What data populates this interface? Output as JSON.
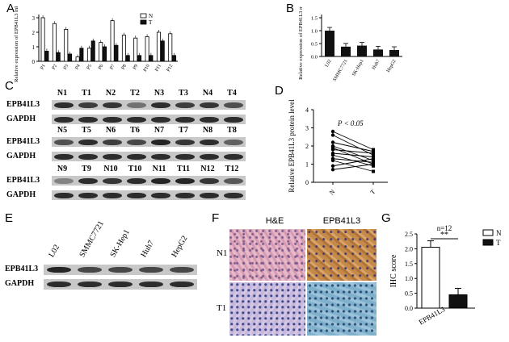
{
  "panels": {
    "A": "A",
    "B": "B",
    "C": "C",
    "D": "D",
    "E": "E",
    "F": "F",
    "G": "G"
  },
  "chartA": {
    "type": "bar",
    "ylabel": "Relative expression of EPB41L3 mRNA",
    "yticks": [
      "0",
      "1",
      "2",
      "3"
    ],
    "ylim": [
      0,
      3
    ],
    "legend": [
      "N",
      "T"
    ],
    "categories": [
      "P1",
      "P2",
      "P3",
      "P4",
      "P5",
      "P6",
      "P7",
      "P8",
      "P9",
      "P10",
      "P11",
      "P12"
    ],
    "series": [
      {
        "name": "N",
        "values": [
          3.0,
          2.6,
          2.2,
          0.3,
          0.9,
          1.3,
          2.8,
          1.8,
          1.6,
          1.7,
          2.0,
          1.9
        ]
      },
      {
        "name": "T",
        "values": [
          0.7,
          0.6,
          0.5,
          0.9,
          1.4,
          1.0,
          1.1,
          0.4,
          0.4,
          0.4,
          1.4,
          0.4
        ]
      }
    ]
  },
  "chartB": {
    "type": "bar",
    "ylabel": "Relative expression of EPB41L3 mRNA",
    "yticks": [
      "0.0",
      "0.5",
      "1.0",
      "1.5"
    ],
    "ylim": [
      0,
      1.5
    ],
    "categories": [
      "L02",
      "SMMC7721",
      "SK-Hep1",
      "Huh7",
      "HepG2"
    ],
    "values": [
      1.0,
      0.38,
      0.42,
      0.27,
      0.25
    ]
  },
  "blotC": {
    "rows": [
      {
        "lanes": [
          "N1",
          "T1",
          "N2",
          "T2",
          "N3",
          "T3",
          "N4",
          "T4"
        ],
        "epb": [
          0.9,
          0.8,
          0.85,
          0.5,
          0.9,
          0.8,
          0.85,
          0.7
        ]
      },
      {
        "lanes": [
          "N5",
          "T5",
          "N6",
          "T6",
          "N7",
          "T7",
          "N8",
          "T8"
        ],
        "epb": [
          0.7,
          0.9,
          0.8,
          0.75,
          0.95,
          0.85,
          0.9,
          0.6
        ]
      },
      {
        "lanes": [
          "N9",
          "T9",
          "N10",
          "T10",
          "N11",
          "T11",
          "N12",
          "T12"
        ],
        "epb": [
          0.4,
          0.9,
          0.85,
          0.9,
          0.95,
          0.95,
          0.85,
          0.65
        ]
      }
    ],
    "target": "EPB41L3",
    "control": "GAPDH"
  },
  "chartD": {
    "type": "scatter",
    "ylabel": "Relative EPB41L3 protein level",
    "yticks": [
      "0",
      "1",
      "2",
      "3",
      "4"
    ],
    "ylim": [
      0,
      4
    ],
    "categories": [
      "N",
      "T"
    ],
    "annotation": "P < 0.05",
    "pairs": [
      [
        2.8,
        1.8
      ],
      [
        2.6,
        1.5
      ],
      [
        2.2,
        1.7
      ],
      [
        2.0,
        1.2
      ],
      [
        1.9,
        1.0
      ],
      [
        1.8,
        1.6
      ],
      [
        1.6,
        1.4
      ],
      [
        1.5,
        0.9
      ],
      [
        1.3,
        1.1
      ],
      [
        1.2,
        0.6
      ],
      [
        0.9,
        1.3
      ],
      [
        0.7,
        1.0
      ]
    ]
  },
  "blotE": {
    "lanes": [
      "L02",
      "SMMC7721",
      "SK-Hep1",
      "Huh7",
      "HepG2"
    ],
    "target": "EPB41L3",
    "control": "GAPDH"
  },
  "ihcF": {
    "columns": [
      "H&E",
      "EPB41L3"
    ],
    "rows": [
      "N1",
      "T1"
    ]
  },
  "chartG": {
    "type": "bar",
    "title": "n=12",
    "ylabel": "IHC score",
    "yticks": [
      "0.0",
      "0.5",
      "1.0",
      "1.5",
      "2.0",
      "2.5"
    ],
    "ylim": [
      0,
      2.5
    ],
    "categories": [
      "EPB41L3"
    ],
    "series": [
      {
        "name": "N",
        "values": [
          2.05
        ]
      },
      {
        "name": "T",
        "values": [
          0.45
        ]
      }
    ],
    "significance": "**",
    "legend": [
      "N",
      "T"
    ],
    "colors": {
      "N": "#ffffff",
      "T": "#111111"
    }
  }
}
